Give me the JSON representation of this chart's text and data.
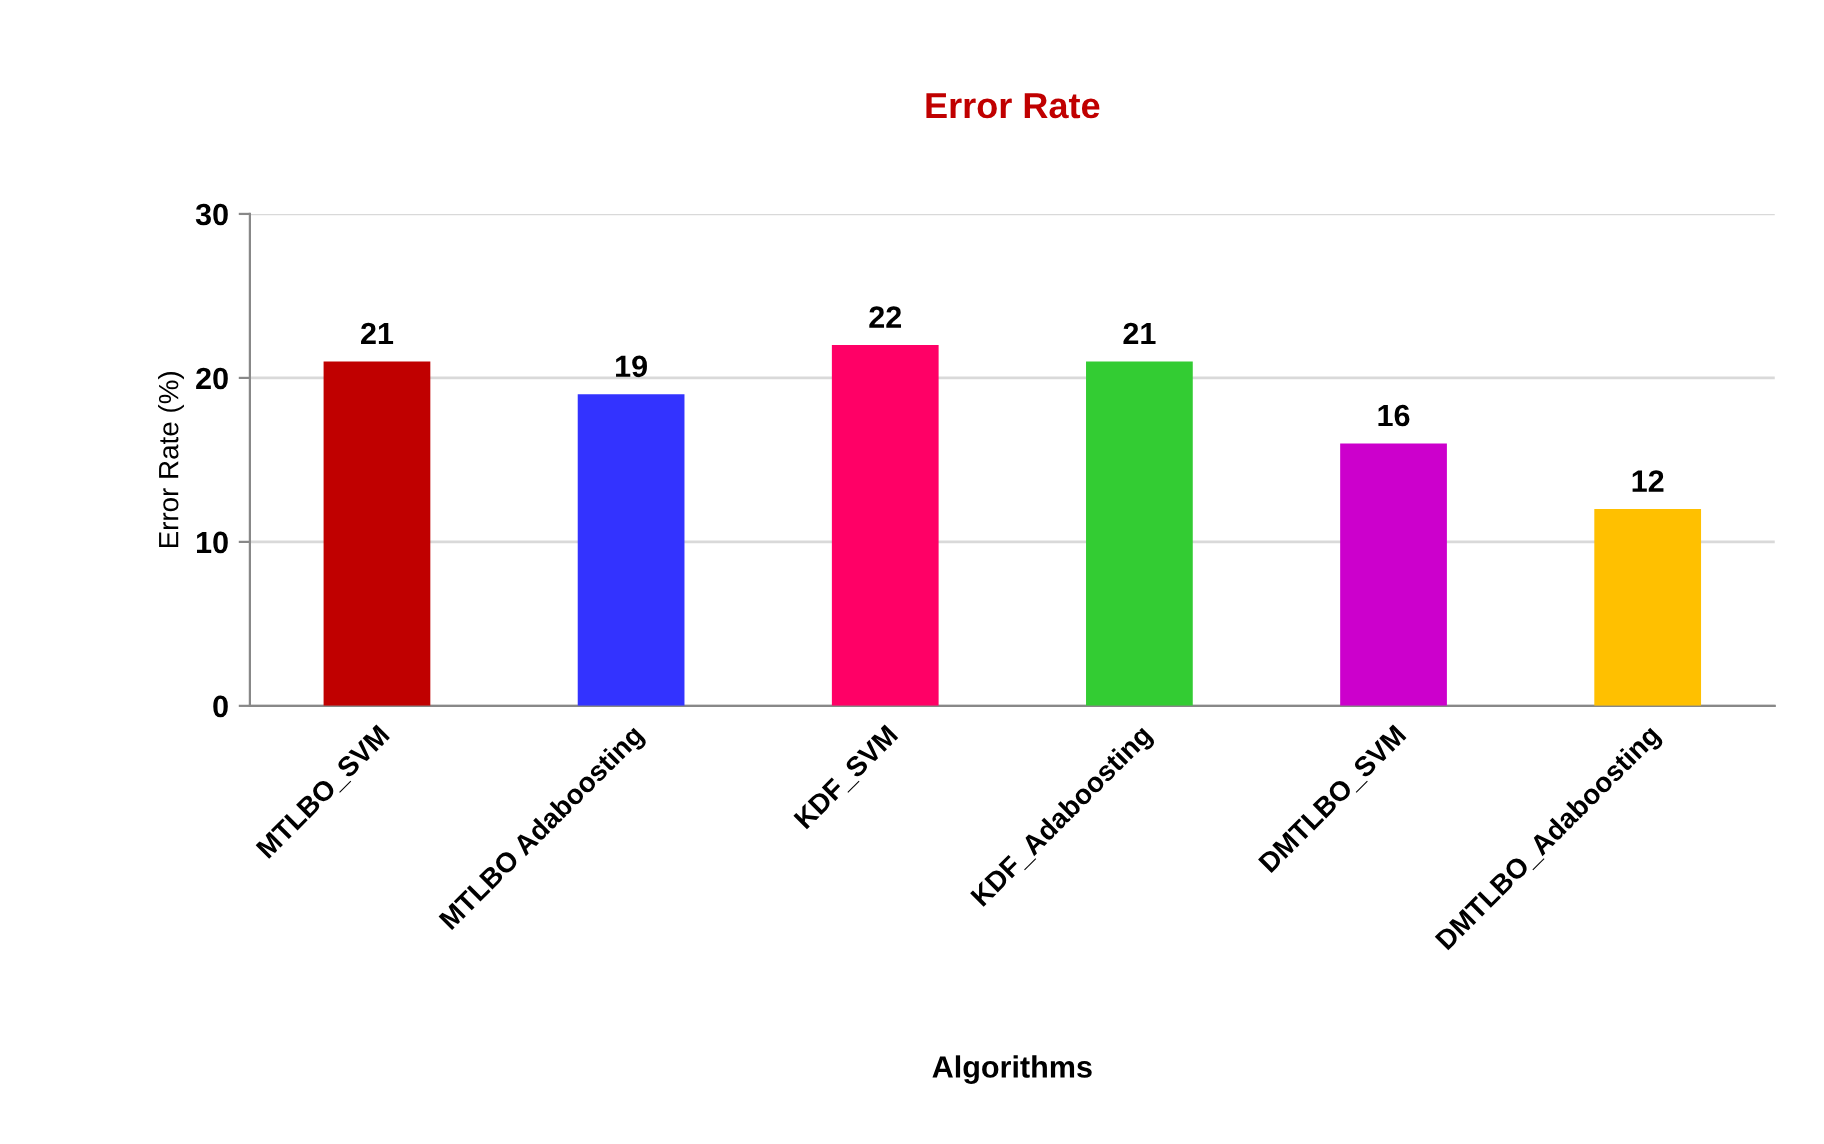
{
  "chart_data": {
    "type": "bar",
    "title": "Error Rate",
    "xlabel": "Algorithms",
    "ylabel": "Error Rate (%)",
    "categories": [
      "MTLBO_SVM",
      "MTLBO Adaboosting",
      "KDF_SVM",
      "KDF_Adaboosting",
      "DMTLBO_SVM",
      "DMTLBO_Adaboosting"
    ],
    "values": [
      21,
      19,
      22,
      21,
      16,
      12
    ],
    "colors": [
      "#c00000",
      "#3333ff",
      "#ff0066",
      "#33cc33",
      "#cc00cc",
      "#ffc000"
    ],
    "ylim": [
      0,
      30
    ],
    "yticks": [
      0,
      10,
      20,
      30
    ],
    "grid": "y",
    "legend": false,
    "data_labels": true
  }
}
